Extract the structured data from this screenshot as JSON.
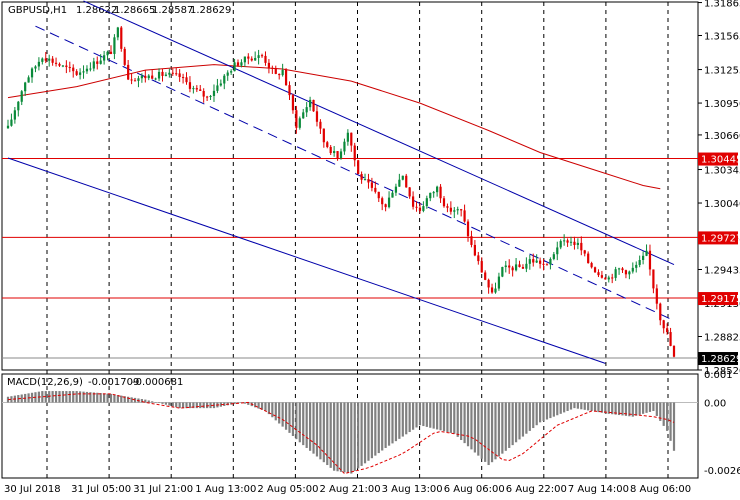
{
  "header": {
    "symbol": "GBPUSD,H1",
    "open": "1.28622",
    "high": "1.28665",
    "low": "1.28587",
    "close": "1.28629"
  },
  "macd": {
    "label": "MACD(12,26,9)",
    "main_value": "-0.001709",
    "signal_value": "-0.000681",
    "y_ticks": [
      "0.001",
      "0.00",
      "-0.002656"
    ]
  },
  "colors": {
    "bull": "#0a8a3a",
    "bear": "#e00000",
    "horizontal_level": "#e00000",
    "channel": "#0000aa",
    "moving_average": "#cc0000",
    "histogram": "#808080",
    "signal": "#e00000",
    "grid": "#000000",
    "price_tag": "#e00000",
    "current_tag": "#000000"
  },
  "chart_data": [
    {
      "type": "candlestick",
      "title": "GBPUSD,H1",
      "ylim": [
        1.2852,
        1.3187
      ],
      "grid": "vertical dashed",
      "y_ticks": [
        "1.31865",
        "1.31565",
        "1.31255",
        "1.30950",
        "1.30660",
        "1.30345",
        "1.30040",
        "1.29735",
        "1.29435",
        "1.29130",
        "1.28825",
        "1.28520"
      ],
      "x_ticks": [
        "30 Jul 2018",
        "31 Jul 05:00",
        "31 Jul 21:00",
        "1 Aug 13:00",
        "2 Aug 05:00",
        "2 Aug 21:00",
        "3 Aug 13:00",
        "6 Aug 06:00",
        "6 Aug 22:00",
        "7 Aug 14:00",
        "8 Aug 06:00"
      ],
      "horizontal_levels": [
        1.30445,
        1.29727,
        1.29175
      ],
      "current_price": 1.28629,
      "close_path": [
        [
          0,
          1.3072
        ],
        [
          5,
          1.3115
        ],
        [
          10,
          1.3138
        ],
        [
          16,
          1.3128
        ],
        [
          20,
          1.3122
        ],
        [
          25,
          1.3131
        ],
        [
          30,
          1.3142
        ],
        [
          32,
          1.3162
        ],
        [
          35,
          1.3118
        ],
        [
          38,
          1.3118
        ],
        [
          42,
          1.312
        ],
        [
          46,
          1.3121
        ],
        [
          50,
          1.3119
        ],
        [
          54,
          1.3108
        ],
        [
          58,
          1.31
        ],
        [
          62,
          1.3115
        ],
        [
          66,
          1.313
        ],
        [
          70,
          1.3136
        ],
        [
          74,
          1.3138
        ],
        [
          78,
          1.312
        ],
        [
          80,
          1.3125
        ],
        [
          84,
          1.3075
        ],
        [
          88,
          1.3098
        ],
        [
          92,
          1.306
        ],
        [
          96,
          1.3045
        ],
        [
          99,
          1.307
        ],
        [
          102,
          1.303
        ],
        [
          105,
          1.302
        ],
        [
          108,
          1.3008
        ],
        [
          110,
          1.3
        ],
        [
          112,
          1.3016
        ],
        [
          115,
          1.303
        ],
        [
          118,
          1.3002
        ],
        [
          120,
          1.2998
        ],
        [
          122,
          1.3008
        ],
        [
          125,
          1.3018
        ],
        [
          128,
          1.2997
        ],
        [
          130,
          1.2998
        ],
        [
          132,
          1.2996
        ],
        [
          135,
          1.2965
        ],
        [
          138,
          1.2942
        ],
        [
          141,
          1.292
        ],
        [
          144,
          1.2944
        ],
        [
          147,
          1.2945
        ],
        [
          150,
          1.2946
        ],
        [
          152,
          1.2952
        ],
        [
          155,
          1.295
        ],
        [
          157,
          1.2946
        ],
        [
          160,
          1.2965
        ],
        [
          163,
          1.297
        ],
        [
          166,
          1.2966
        ],
        [
          169,
          1.295
        ],
        [
          172,
          1.294
        ],
        [
          175,
          1.2936
        ],
        [
          178,
          1.2944
        ],
        [
          181,
          1.2941
        ],
        [
          184,
          1.295
        ],
        [
          186,
          1.2958
        ],
        [
          188,
          1.2928
        ],
        [
          190,
          1.29
        ],
        [
          192,
          1.2885
        ],
        [
          194,
          1.2863
        ]
      ],
      "channel_upper": [
        [
          22,
          1.3188
        ],
        [
          194,
          1.2948
        ]
      ],
      "channel_middle": [
        [
          8,
          1.3165
        ],
        [
          194,
          1.2897
        ]
      ],
      "channel_lower": [
        [
          0,
          1.3045
        ],
        [
          174,
          1.2858
        ]
      ],
      "moving_average_path": [
        [
          0,
          1.31
        ],
        [
          20,
          1.311
        ],
        [
          40,
          1.3125
        ],
        [
          60,
          1.313
        ],
        [
          80,
          1.3126
        ],
        [
          100,
          1.3115
        ],
        [
          120,
          1.3095
        ],
        [
          140,
          1.307
        ],
        [
          155,
          1.305
        ],
        [
          170,
          1.3035
        ],
        [
          185,
          1.302
        ],
        [
          190,
          1.3017
        ]
      ],
      "macd_ylim": [
        -0.002656,
        0.001
      ],
      "macd_histogram": [
        [
          0,
          0.0002
        ],
        [
          10,
          0.0004
        ],
        [
          20,
          0.0004
        ],
        [
          30,
          0.0003
        ],
        [
          40,
          0.0001
        ],
        [
          50,
          -0.0002
        ],
        [
          60,
          -0.0002
        ],
        [
          68,
          0.0
        ],
        [
          75,
          -0.0003
        ],
        [
          85,
          -0.0014
        ],
        [
          95,
          -0.0024
        ],
        [
          100,
          -0.0025
        ],
        [
          110,
          -0.0016
        ],
        [
          120,
          -0.0008
        ],
        [
          130,
          -0.0011
        ],
        [
          140,
          -0.0022
        ],
        [
          145,
          -0.0017
        ],
        [
          155,
          -0.0007
        ],
        [
          165,
          -0.0002
        ],
        [
          175,
          -0.0004
        ],
        [
          182,
          -0.0005
        ],
        [
          188,
          -0.0003
        ],
        [
          192,
          -0.001
        ],
        [
          194,
          -0.0017
        ]
      ],
      "macd_signal": [
        [
          0,
          0.0001
        ],
        [
          10,
          0.0002
        ],
        [
          20,
          0.0003
        ],
        [
          30,
          0.0003
        ],
        [
          40,
          0.0
        ],
        [
          50,
          -0.0002
        ],
        [
          60,
          -0.0001
        ],
        [
          70,
          0.0
        ],
        [
          80,
          -0.0006
        ],
        [
          90,
          -0.0015
        ],
        [
          98,
          -0.0025
        ],
        [
          105,
          -0.0023
        ],
        [
          115,
          -0.0018
        ],
        [
          125,
          -0.001
        ],
        [
          135,
          -0.0012
        ],
        [
          145,
          -0.0021
        ],
        [
          150,
          -0.0018
        ],
        [
          160,
          -0.0008
        ],
        [
          170,
          -0.0003
        ],
        [
          180,
          -0.0004
        ],
        [
          188,
          -0.0005
        ],
        [
          192,
          -0.0006
        ],
        [
          194,
          -0.0007
        ]
      ]
    }
  ]
}
